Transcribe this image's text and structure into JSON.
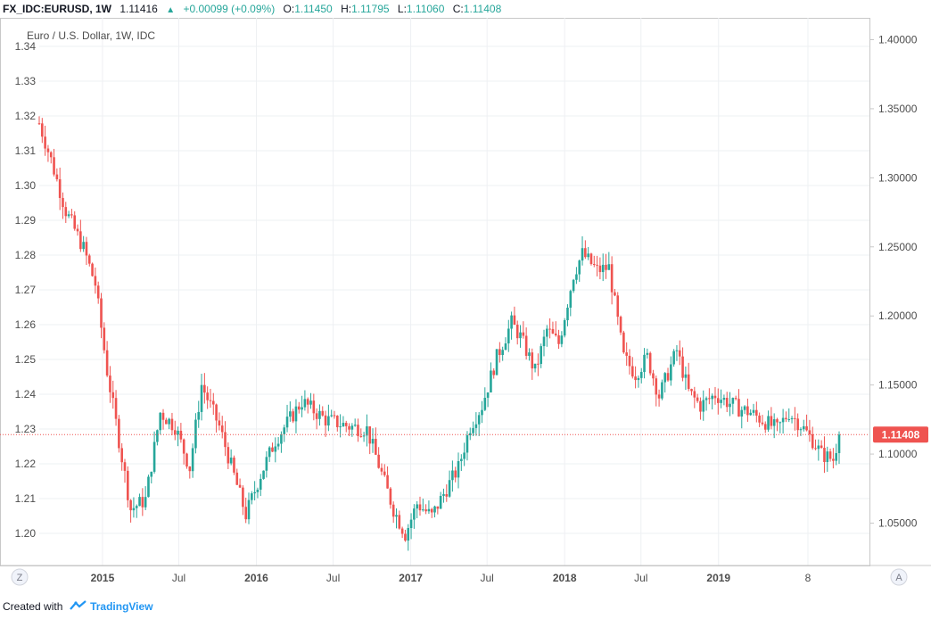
{
  "header": {
    "symbol": "FX_IDC:EURUSD, 1W",
    "price": "1.11416",
    "change": "+0.00099 (+0.09%)",
    "open_label": "O:",
    "open": "1.11450",
    "high_label": "H:",
    "high": "1.11795",
    "low_label": "L:",
    "low": "1.11060",
    "close_label": "C:",
    "close": "1.11408"
  },
  "chart_data": {
    "type": "candlestick",
    "title": "Euro / U.S. Dollar, 1W, IDC",
    "x_labels": [
      "2015",
      "Jul",
      "2016",
      "Jul",
      "2017",
      "Jul",
      "2018",
      "Jul",
      "2019",
      "8"
    ],
    "left_axis": {
      "ticks": [
        "1.34",
        "1.33",
        "1.32",
        "1.31",
        "1.30",
        "1.29",
        "1.28",
        "1.27",
        "1.26",
        "1.25",
        "1.24",
        "1.23",
        "1.22",
        "1.21",
        "1.20"
      ],
      "ylim": [
        1.195,
        1.345
      ]
    },
    "right_axis": {
      "ticks": [
        "1.40000",
        "1.35000",
        "1.30000",
        "1.25000",
        "1.20000",
        "1.15000",
        "1.10000",
        "1.05000"
      ],
      "ylim": [
        1.013,
        1.405
      ]
    },
    "last_price": "1.11408",
    "last_price_color": "#ef5350",
    "up_color": "#26a69a",
    "down_color": "#ef5350",
    "grid": true,
    "price_path": [
      [
        "2014-08-04",
        1.3395
      ],
      [
        "2014-09-01",
        1.313
      ],
      [
        "2014-10-06",
        1.276
      ],
      [
        "2014-11-17",
        1.249
      ],
      [
        "2014-12-15",
        1.223
      ],
      [
        "2015-01-12",
        1.16
      ],
      [
        "2015-03-09",
        1.06
      ],
      [
        "2015-04-13",
        1.067
      ],
      [
        "2015-05-18",
        1.13
      ],
      [
        "2015-06-22",
        1.12
      ],
      [
        "2015-07-27",
        1.09
      ],
      [
        "2015-08-24",
        1.15
      ],
      [
        "2015-10-05",
        1.12
      ],
      [
        "2015-12-07",
        1.056
      ],
      [
        "2016-01-11",
        1.085
      ],
      [
        "2016-02-15",
        1.11
      ],
      [
        "2016-04-18",
        1.138
      ],
      [
        "2016-06-13",
        1.125
      ],
      [
        "2016-08-08",
        1.12
      ],
      [
        "2016-09-19",
        1.118
      ],
      [
        "2016-11-21",
        1.06
      ],
      [
        "2016-12-19",
        1.042
      ],
      [
        "2017-01-16",
        1.064
      ],
      [
        "2017-02-20",
        1.055
      ],
      [
        "2017-03-27",
        1.075
      ],
      [
        "2017-04-24",
        1.09
      ],
      [
        "2017-05-22",
        1.12
      ],
      [
        "2017-06-19",
        1.135
      ],
      [
        "2017-07-24",
        1.17
      ],
      [
        "2017-08-28",
        1.195
      ],
      [
        "2017-09-18",
        1.185
      ],
      [
        "2017-10-23",
        1.16
      ],
      [
        "2017-11-20",
        1.19
      ],
      [
        "2017-12-18",
        1.18
      ],
      [
        "2018-01-22",
        1.23
      ],
      [
        "2018-02-12",
        1.245
      ],
      [
        "2018-03-19",
        1.233
      ],
      [
        "2018-04-16",
        1.235
      ],
      [
        "2018-05-21",
        1.17
      ],
      [
        "2018-06-18",
        1.158
      ],
      [
        "2018-07-16",
        1.17
      ],
      [
        "2018-08-13",
        1.142
      ],
      [
        "2018-09-24",
        1.175
      ],
      [
        "2018-10-22",
        1.145
      ],
      [
        "2018-11-19",
        1.135
      ],
      [
        "2018-12-24",
        1.143
      ],
      [
        "2019-01-21",
        1.138
      ],
      [
        "2019-02-18",
        1.133
      ],
      [
        "2019-03-18",
        1.13
      ],
      [
        "2019-05-20",
        1.118
      ],
      [
        "2019-06-17",
        1.13
      ],
      [
        "2019-07-15",
        1.121
      ],
      [
        "2019-08-12",
        1.11
      ],
      [
        "2019-09-02",
        1.1
      ],
      [
        "2019-09-30",
        1.096
      ],
      [
        "2019-10-14",
        1.114
      ]
    ]
  },
  "footer": {
    "created": "Created with",
    "brand": "TradingView"
  },
  "buttons": {
    "left": "Z",
    "right": "A"
  }
}
